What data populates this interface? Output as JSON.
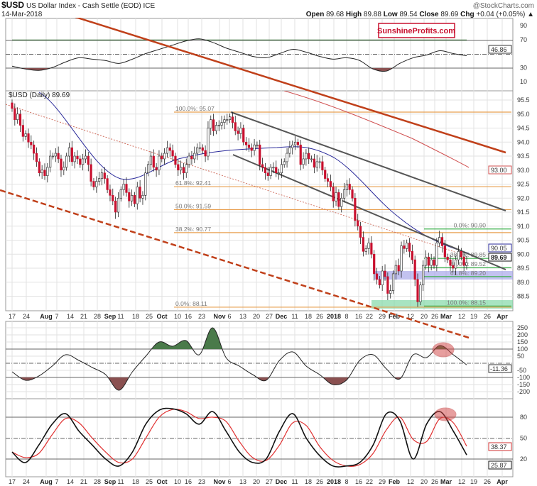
{
  "header": {
    "symbol": "$USD",
    "name": "US Dollar Index - Cash Settle (EOD) ICE",
    "date": "14-Mar-2018",
    "copyright": "@StockCharts.com",
    "open_label": "Open",
    "open": "89.68",
    "high_label": "High",
    "high": "89.88",
    "low_label": "Low",
    "low": "89.54",
    "close_label": "Close",
    "close": "89.69",
    "chg_label": "Chg",
    "chg": "+0.04 (+0.05%)",
    "chg_arrow": "▲"
  },
  "watermark": "SunshineProfits.com",
  "colors": {
    "down": "#c8102e",
    "up": "#ffffff",
    "sma50": "#2a2a9a",
    "sma200": "#d05050",
    "trend": "#c0401a",
    "fib_left": "#e8a050",
    "fib_right": "#3cb04c"
  },
  "chart_data": {
    "type": "candlestick",
    "main": {
      "title": "$USD (Daily) 89.69",
      "ylim": [
        88.0,
        95.7
      ],
      "yticks": [
        "95.5",
        "95.0",
        "94.5",
        "94.0",
        "93.5",
        "93.0",
        "92.5",
        "92.0",
        "91.5",
        "91.0",
        "90.5",
        "90.0",
        "89.5",
        "89.0",
        "88.5"
      ],
      "first_open": 95.4,
      "closes": [
        95.2,
        94.8,
        95.0,
        94.6,
        94.2,
        94.3,
        94.0,
        93.9,
        93.6,
        93.3,
        92.9,
        93.0,
        92.8,
        93.1,
        93.5,
        93.5,
        93.6,
        93.4,
        93.0,
        93.1,
        93.5,
        93.8,
        93.3,
        93.5,
        93.4,
        93.2,
        93.4,
        93.5,
        93.2,
        92.6,
        92.4,
        92.6,
        92.7,
        92.9,
        92.7,
        92.3,
        92.1,
        91.9,
        91.5,
        92.0,
        92.3,
        92.5,
        92.2,
        91.9,
        92.1,
        91.8,
        92.4,
        92.0,
        92.1,
        92.9,
        93.2,
        93.5,
        93.1,
        93.0,
        93.5,
        93.4,
        93.6,
        93.8,
        93.7,
        93.5,
        93.2,
        93.0,
        93.1,
        92.9,
        93.2,
        93.5,
        93.4,
        93.6,
        93.8,
        93.8,
        93.7,
        93.5,
        94.5,
        94.8,
        94.4,
        94.6,
        94.6,
        94.7,
        94.8,
        94.8,
        94.9,
        94.7,
        94.4,
        94.3,
        94.5,
        94.0,
        93.9,
        93.8,
        93.7,
        93.9,
        93.9,
        93.2,
        93.1,
        92.9,
        92.8,
        93.1,
        93.1,
        92.9,
        92.9,
        93.2,
        93.3,
        93.6,
        93.8,
        93.9,
        94.0,
        93.9,
        93.2,
        93.4,
        93.6,
        93.4,
        93.4,
        93.1,
        93.3,
        93.3,
        93.0,
        92.7,
        92.6,
        92.4,
        91.9,
        92.2,
        91.7,
        92.0,
        92.3,
        92.5,
        92.3,
        92.0,
        91.2,
        91.0,
        90.6,
        90.1,
        90.2,
        90.4,
        90.0,
        89.3,
        89.1,
        88.9,
        89.4,
        89.2,
        88.6,
        88.7,
        89.3,
        89.6,
        89.4,
        90.3,
        90.2,
        90.4,
        90.1,
        89.8,
        89.1,
        88.3,
        88.9,
        89.6,
        89.9,
        89.6,
        89.8,
        89.6,
        90.4,
        90.6,
        90.3,
        89.9,
        89.8,
        89.6,
        89.5,
        89.8,
        90.1,
        89.9,
        89.6,
        89.69
      ],
      "price_labels": {
        "last": "89.69",
        "sma50": "90.05",
        "sma200": "93.00"
      },
      "fib_left": [
        {
          "label": "100.0%: 95.07",
          "value": 95.07
        },
        {
          "label": "61.8%: 92.41",
          "value": 92.41
        },
        {
          "label": "50.0%: 91.59",
          "value": 91.59
        },
        {
          "label": "38.2%: 90.77",
          "value": 90.77
        },
        {
          "label": "0.0%: 88.11",
          "value": 88.11
        }
      ],
      "fib_right": [
        {
          "label": "0.0%: 90.90",
          "value": 90.9
        },
        {
          "label": "38.2%: 89.85",
          "value": 89.85
        },
        {
          "label": "50.0%: 89.52",
          "value": 89.52
        },
        {
          "label": "61.8%: 89.20",
          "value": 89.2
        },
        {
          "label": "100.0%: 88.15",
          "value": 88.15
        }
      ]
    },
    "x_tick_labels": [
      "17",
      "24",
      "Aug",
      "7",
      "14",
      "21",
      "28",
      "Sep",
      "11",
      "18",
      "25",
      "Oct",
      "10",
      "16",
      "23",
      "Nov",
      "6",
      "13",
      "20",
      "27",
      "Dec",
      "11",
      "18",
      "26",
      "2018",
      "8",
      "16",
      "22",
      "29",
      "Feb",
      "12",
      "20",
      "26",
      "Mar",
      "12",
      "19",
      "26",
      "Apr"
    ],
    "rsi": {
      "yticks": [
        "90",
        "70",
        "30",
        "10"
      ],
      "last": "46.86",
      "values": [
        32,
        28,
        26,
        30,
        38,
        44,
        42,
        40,
        36,
        42,
        50,
        56,
        62,
        68,
        71,
        66,
        58,
        52,
        46,
        44,
        50,
        56,
        52,
        46,
        42,
        44,
        40,
        28,
        25,
        36,
        44,
        48,
        54,
        50,
        46.86
      ]
    },
    "cci": {
      "yticks": [
        "250",
        "200",
        "150",
        "100",
        "50",
        "-50",
        "-100",
        "-150",
        "-200"
      ],
      "last": "-11.36",
      "values": [
        -60,
        -120,
        -90,
        -20,
        60,
        20,
        -30,
        -80,
        -190,
        -60,
        50,
        150,
        120,
        160,
        60,
        250,
        40,
        -20,
        -80,
        -120,
        20,
        80,
        -20,
        -80,
        -150,
        -120,
        20,
        60,
        -40,
        -110,
        60,
        40,
        125,
        60,
        -11.36
      ]
    },
    "stoch": {
      "yticks": [
        "80",
        "50",
        "20"
      ],
      "k_last": "25.87",
      "d_last": "38.37",
      "k": [
        30,
        15,
        40,
        70,
        85,
        60,
        40,
        20,
        10,
        30,
        70,
        90,
        92,
        85,
        70,
        88,
        60,
        30,
        15,
        20,
        60,
        85,
        50,
        25,
        10,
        10,
        15,
        40,
        85,
        75,
        20,
        70,
        88,
        60,
        25.87
      ],
      "d": [
        30,
        22,
        28,
        55,
        78,
        72,
        50,
        30,
        15,
        20,
        50,
        80,
        91,
        88,
        78,
        80,
        74,
        45,
        22,
        18,
        40,
        72,
        68,
        38,
        18,
        10,
        12,
        28,
        62,
        80,
        48,
        45,
        78,
        72,
        38.37
      ]
    }
  }
}
